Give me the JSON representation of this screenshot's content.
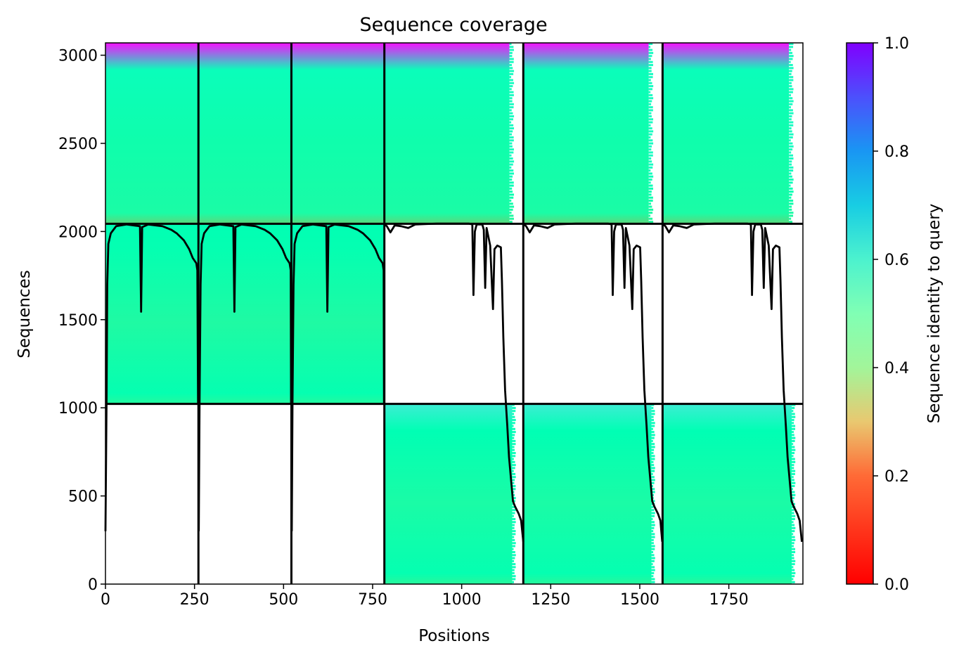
{
  "chart_data": {
    "type": "heatmap",
    "title": "Sequence coverage",
    "xlabel": "Positions",
    "ylabel": "Sequences",
    "xlim": [
      0,
      1958
    ],
    "ylim": [
      0,
      3070
    ],
    "x_ticks": [
      0,
      250,
      500,
      750,
      1000,
      1250,
      1500,
      1750
    ],
    "y_ticks": [
      0,
      500,
      1000,
      1500,
      2000,
      2500,
      3000
    ],
    "colorbar": {
      "label": "Sequence identity to query",
      "colormap": "rainbow_r",
      "range": [
        0,
        1
      ],
      "ticks": [
        0.0,
        0.2,
        0.4,
        0.6,
        0.8,
        1.0
      ],
      "tick_labels": [
        "0.0",
        "0.2",
        "0.4",
        "0.6",
        "0.8",
        "1.0"
      ]
    },
    "chain_boundaries_x": [
      261,
      522,
      783,
      1173,
      1564
    ],
    "row_boundaries_y": [
      1022,
      2044
    ],
    "blocks": [
      {
        "x": [
          0,
          261
        ],
        "y": [
          2044,
          3070
        ],
        "identity_bottom": 0.32,
        "identity_top": 0.98,
        "identity_mid": 0.5,
        "coverage_end": 1.0
      },
      {
        "x": [
          261,
          522
        ],
        "y": [
          2044,
          3070
        ],
        "identity_bottom": 0.32,
        "identity_top": 0.98,
        "identity_mid": 0.5,
        "coverage_end": 1.0
      },
      {
        "x": [
          522,
          783
        ],
        "y": [
          2044,
          3070
        ],
        "identity_bottom": 0.32,
        "identity_top": 0.98,
        "identity_mid": 0.5,
        "coverage_end": 1.0
      },
      {
        "x": [
          783,
          1173
        ],
        "y": [
          2044,
          3070
        ],
        "identity_bottom": 0.32,
        "identity_top": 0.98,
        "identity_mid": 0.5,
        "coverage_end": 0.9
      },
      {
        "x": [
          1173,
          1564
        ],
        "y": [
          2044,
          3070
        ],
        "identity_bottom": 0.32,
        "identity_top": 0.98,
        "identity_mid": 0.5,
        "coverage_end": 0.9
      },
      {
        "x": [
          1564,
          1958
        ],
        "y": [
          2044,
          3070
        ],
        "identity_bottom": 0.32,
        "identity_top": 0.98,
        "identity_mid": 0.5,
        "coverage_end": 0.9
      },
      {
        "x": [
          0,
          261
        ],
        "y": [
          1022,
          2044
        ],
        "identity_bottom": 0.43,
        "identity_top": 0.5,
        "identity_mid": 0.47,
        "coverage_end": 1.0
      },
      {
        "x": [
          261,
          522
        ],
        "y": [
          1022,
          2044
        ],
        "identity_bottom": 0.43,
        "identity_top": 0.5,
        "identity_mid": 0.47,
        "coverage_end": 1.0
      },
      {
        "x": [
          522,
          783
        ],
        "y": [
          1022,
          2044
        ],
        "identity_bottom": 0.43,
        "identity_top": 0.5,
        "identity_mid": 0.47,
        "coverage_end": 1.0
      },
      {
        "x": [
          783,
          1173
        ],
        "y": [
          0,
          1022
        ],
        "identity_bottom": 0.42,
        "identity_top": 0.62,
        "identity_mid": 0.48,
        "coverage_end": 0.92
      },
      {
        "x": [
          1173,
          1564
        ],
        "y": [
          0,
          1022
        ],
        "identity_bottom": 0.42,
        "identity_top": 0.62,
        "identity_mid": 0.48,
        "coverage_end": 0.92
      },
      {
        "x": [
          1564,
          1958
        ],
        "y": [
          0,
          1022
        ],
        "identity_bottom": 0.42,
        "identity_top": 0.62,
        "identity_mid": 0.48,
        "coverage_end": 0.92
      }
    ],
    "coverage_line": [
      [
        [
          0,
          300
        ],
        [
          3,
          1020
        ],
        [
          5,
          1700
        ],
        [
          8,
          1930
        ],
        [
          15,
          1990
        ],
        [
          30,
          2030
        ],
        [
          60,
          2040
        ],
        [
          97,
          2030
        ],
        [
          100,
          1545
        ],
        [
          103,
          2025
        ],
        [
          120,
          2040
        ],
        [
          160,
          2030
        ],
        [
          185,
          2010
        ],
        [
          200,
          1990
        ],
        [
          220,
          1950
        ],
        [
          235,
          1900
        ],
        [
          245,
          1850
        ],
        [
          255,
          1820
        ],
        [
          258,
          1780
        ],
        [
          260,
          1020
        ]
      ],
      [
        [
          262,
          300
        ],
        [
          264,
          1020
        ],
        [
          267,
          1700
        ],
        [
          270,
          1930
        ],
        [
          277,
          1990
        ],
        [
          292,
          2030
        ],
        [
          322,
          2040
        ],
        [
          359,
          2030
        ],
        [
          362,
          1545
        ],
        [
          365,
          2025
        ],
        [
          382,
          2040
        ],
        [
          422,
          2030
        ],
        [
          447,
          2010
        ],
        [
          462,
          1990
        ],
        [
          482,
          1950
        ],
        [
          497,
          1900
        ],
        [
          507,
          1850
        ],
        [
          517,
          1820
        ],
        [
          520,
          1780
        ],
        [
          521,
          1020
        ]
      ],
      [
        [
          523,
          300
        ],
        [
          525,
          1020
        ],
        [
          528,
          1700
        ],
        [
          531,
          1930
        ],
        [
          538,
          1990
        ],
        [
          553,
          2030
        ],
        [
          583,
          2040
        ],
        [
          620,
          2030
        ],
        [
          623,
          1545
        ],
        [
          626,
          2025
        ],
        [
          643,
          2040
        ],
        [
          683,
          2030
        ],
        [
          708,
          2010
        ],
        [
          723,
          1990
        ],
        [
          743,
          1950
        ],
        [
          758,
          1900
        ],
        [
          768,
          1850
        ],
        [
          778,
          1820
        ],
        [
          781,
          1780
        ],
        [
          782,
          1020
        ]
      ],
      [
        [
          784,
          2040
        ],
        [
          790,
          2030
        ],
        [
          800,
          1995
        ],
        [
          812,
          2035
        ],
        [
          830,
          2030
        ],
        [
          850,
          2020
        ],
        [
          870,
          2040
        ],
        [
          930,
          2045
        ],
        [
          1020,
          2045
        ],
        [
          1030,
          2040
        ],
        [
          1033,
          1640
        ],
        [
          1037,
          2000
        ],
        [
          1042,
          2040
        ],
        [
          1058,
          2040
        ],
        [
          1062,
          2010
        ],
        [
          1066,
          1680
        ],
        [
          1070,
          2020
        ],
        [
          1080,
          1920
        ],
        [
          1088,
          1560
        ],
        [
          1092,
          1900
        ],
        [
          1100,
          1920
        ],
        [
          1110,
          1910
        ],
        [
          1113,
          1720
        ],
        [
          1117,
          1400
        ],
        [
          1122,
          1100
        ],
        [
          1128,
          900
        ],
        [
          1133,
          720
        ],
        [
          1140,
          560
        ],
        [
          1144,
          470
        ],
        [
          1150,
          440
        ],
        [
          1160,
          400
        ],
        [
          1167,
          360
        ],
        [
          1173,
          240
        ]
      ],
      [
        [
          1175,
          2040
        ],
        [
          1181,
          2030
        ],
        [
          1191,
          1995
        ],
        [
          1203,
          2035
        ],
        [
          1221,
          2030
        ],
        [
          1241,
          2020
        ],
        [
          1261,
          2040
        ],
        [
          1321,
          2045
        ],
        [
          1411,
          2045
        ],
        [
          1421,
          2040
        ],
        [
          1424,
          1640
        ],
        [
          1428,
          2000
        ],
        [
          1433,
          2040
        ],
        [
          1449,
          2040
        ],
        [
          1453,
          2010
        ],
        [
          1457,
          1680
        ],
        [
          1461,
          2020
        ],
        [
          1471,
          1920
        ],
        [
          1479,
          1560
        ],
        [
          1483,
          1900
        ],
        [
          1491,
          1920
        ],
        [
          1501,
          1910
        ],
        [
          1504,
          1720
        ],
        [
          1508,
          1400
        ],
        [
          1513,
          1100
        ],
        [
          1519,
          900
        ],
        [
          1524,
          720
        ],
        [
          1531,
          560
        ],
        [
          1535,
          470
        ],
        [
          1541,
          440
        ],
        [
          1551,
          400
        ],
        [
          1558,
          360
        ],
        [
          1563,
          240
        ]
      ],
      [
        [
          1566,
          2040
        ],
        [
          1572,
          2030
        ],
        [
          1582,
          1995
        ],
        [
          1594,
          2035
        ],
        [
          1612,
          2030
        ],
        [
          1632,
          2020
        ],
        [
          1652,
          2040
        ],
        [
          1712,
          2045
        ],
        [
          1802,
          2045
        ],
        [
          1812,
          2040
        ],
        [
          1815,
          1640
        ],
        [
          1819,
          2000
        ],
        [
          1824,
          2040
        ],
        [
          1840,
          2040
        ],
        [
          1844,
          2010
        ],
        [
          1848,
          1680
        ],
        [
          1852,
          2020
        ],
        [
          1862,
          1920
        ],
        [
          1870,
          1560
        ],
        [
          1874,
          1900
        ],
        [
          1882,
          1920
        ],
        [
          1892,
          1910
        ],
        [
          1895,
          1720
        ],
        [
          1899,
          1400
        ],
        [
          1904,
          1100
        ],
        [
          1910,
          900
        ],
        [
          1915,
          720
        ],
        [
          1922,
          560
        ],
        [
          1926,
          470
        ],
        [
          1932,
          440
        ],
        [
          1942,
          400
        ],
        [
          1949,
          360
        ],
        [
          1955,
          240
        ]
      ]
    ]
  }
}
